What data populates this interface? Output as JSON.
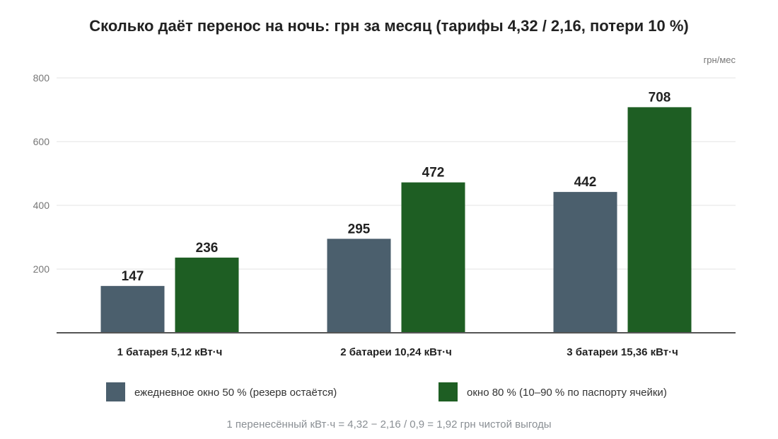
{
  "title": "Сколько даёт перенос на ночь: грн за месяц (тарифы 4,32 / 2,16, потери 10 %)",
  "unit_label": "грн/мес",
  "footnote": "1 перенесённый кВт·ч = 4,32 − 2,16 / 0,9 = 1,92 грн чистой выгоды",
  "chart_data": {
    "type": "bar",
    "title": "Сколько даёт перенос на ночь: грн за месяц (тарифы 4,32 / 2,16, потери 10 %)",
    "ylabel": "грн/мес",
    "xlabel": "",
    "ylim": [
      0,
      800
    ],
    "yticks": [
      200,
      400,
      600,
      800
    ],
    "grid": true,
    "legend_position": "bottom",
    "categories": [
      "1 батарея 5,12 кВт·ч",
      "2 батареи 10,24 кВт·ч",
      "3 батареи 15,36 кВт·ч"
    ],
    "series": [
      {
        "name": "ежедневное окно 50 % (резерв остаётся)",
        "color": "#4b5f6d",
        "values": [
          147,
          295,
          442
        ]
      },
      {
        "name": "окно 80 % (10–90 % по паспорту ячейки)",
        "color": "#1e5e23",
        "values": [
          236,
          472,
          708
        ]
      }
    ]
  }
}
